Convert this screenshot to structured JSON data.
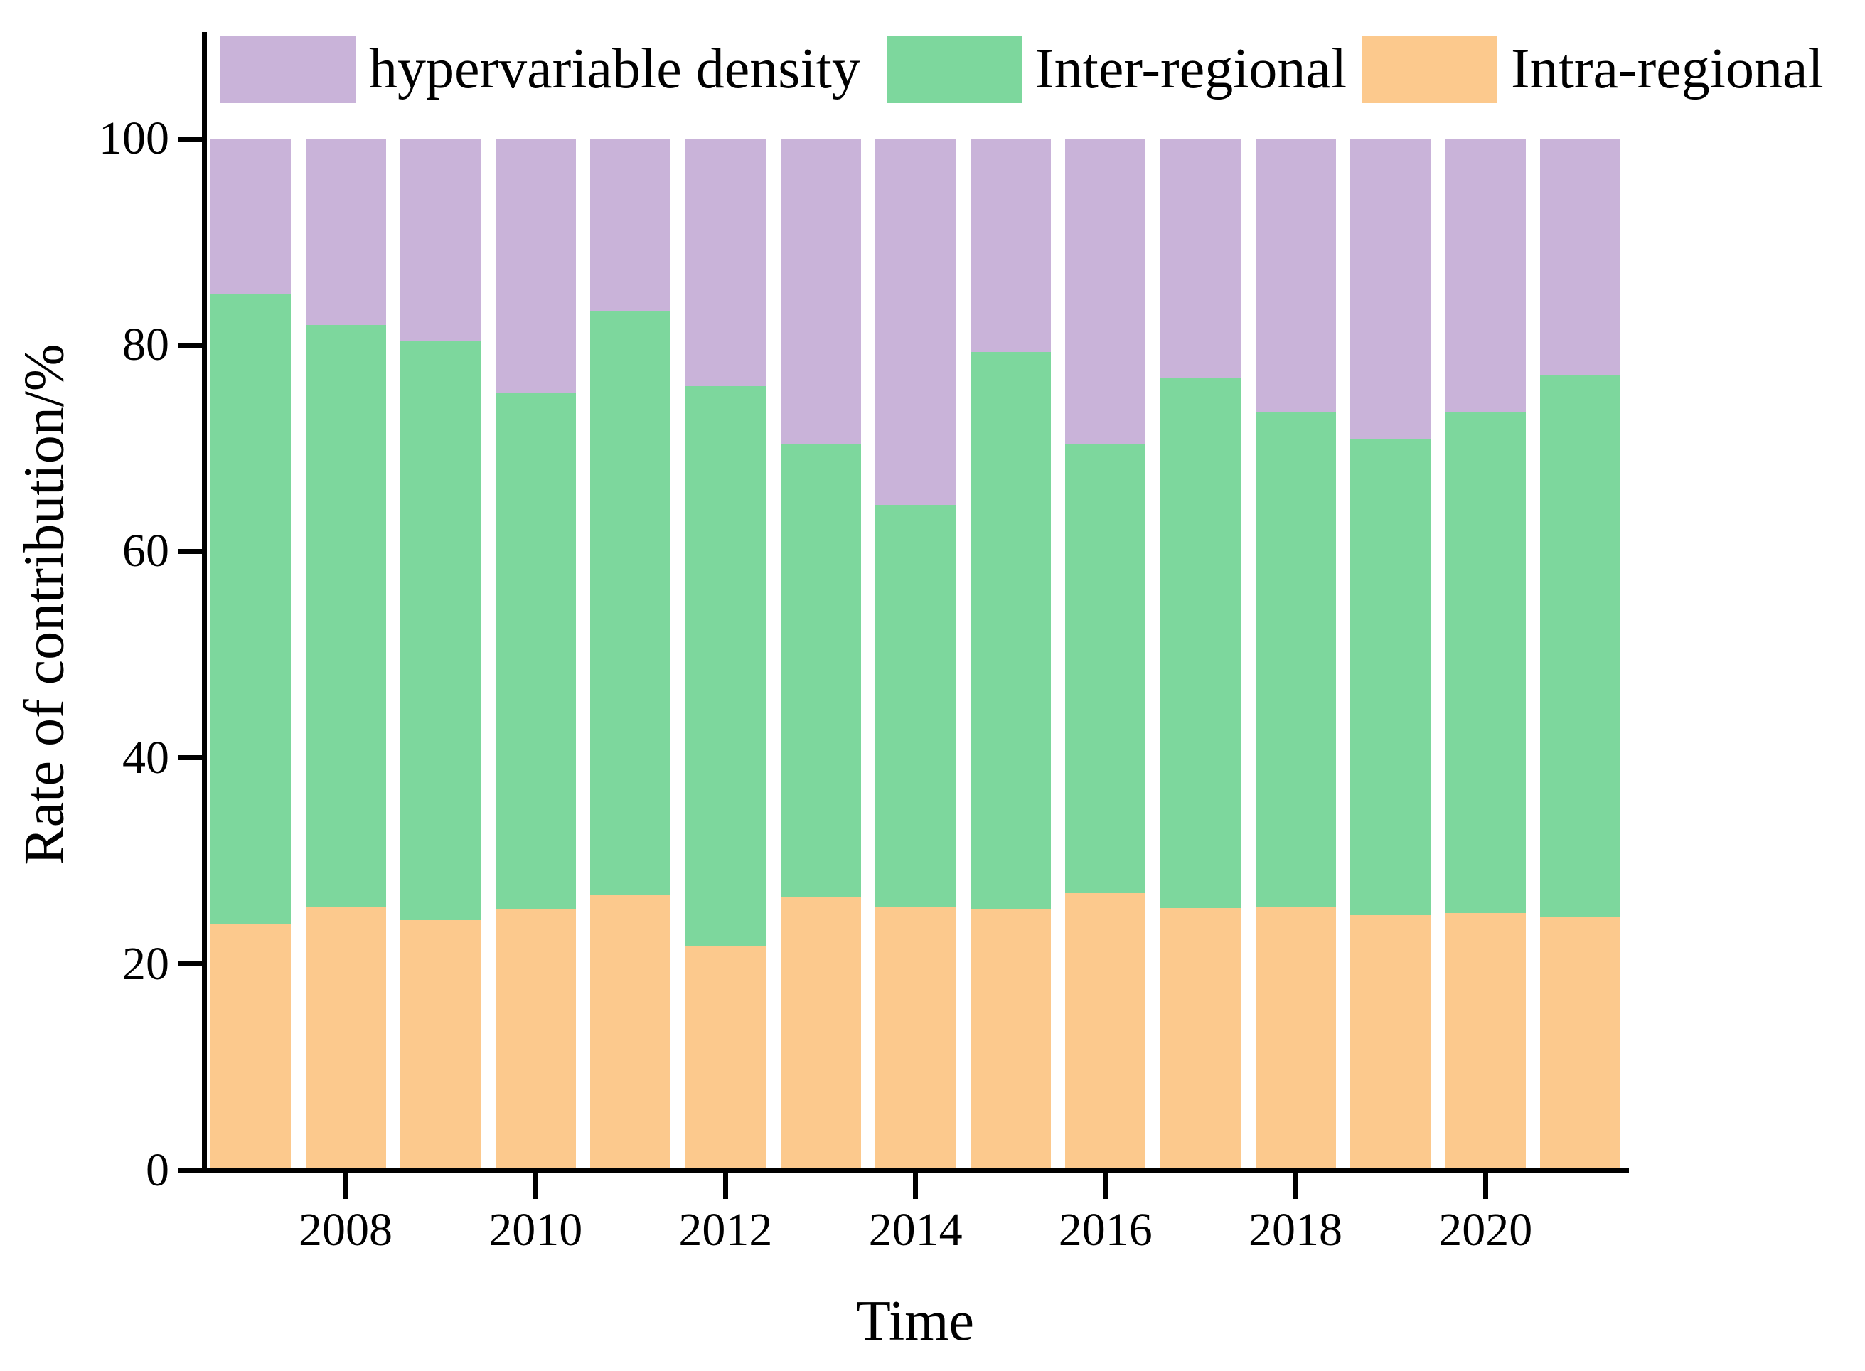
{
  "chart_data": {
    "type": "bar",
    "stacked": true,
    "title": "",
    "xlabel": "Time",
    "ylabel": "Rate of contribution/%",
    "ylim": [
      0,
      100
    ],
    "yticks": [
      0,
      20,
      40,
      60,
      80,
      100
    ],
    "xticks": [
      2008,
      2010,
      2012,
      2014,
      2016,
      2018,
      2020
    ],
    "grid": false,
    "legend_position": "top",
    "categories": [
      2007,
      2008,
      2009,
      2010,
      2011,
      2012,
      2013,
      2014,
      2015,
      2016,
      2017,
      2018,
      2019,
      2020,
      2021
    ],
    "series": [
      {
        "name": "Intra-regional",
        "color": "#fcc98d",
        "values": [
          23.7,
          25.4,
          24.1,
          25.2,
          26.6,
          21.6,
          26.4,
          25.4,
          25.2,
          26.7,
          25.3,
          25.4,
          24.6,
          24.8,
          24.4
        ]
      },
      {
        "name": "Inter-regional",
        "color": "#7dd79d",
        "values": [
          61.2,
          56.5,
          56.3,
          50.1,
          56.6,
          54.4,
          43.9,
          39.0,
          54.1,
          43.6,
          51.5,
          48.1,
          46.2,
          48.7,
          52.6
        ]
      },
      {
        "name": "hypervariable density",
        "color": "#c9b3d9",
        "values": [
          15.1,
          18.1,
          19.6,
          24.7,
          16.8,
          24.0,
          29.7,
          35.6,
          20.7,
          29.7,
          23.2,
          26.5,
          29.2,
          26.5,
          23.0
        ]
      }
    ],
    "legend": [
      {
        "label": "hypervariable density",
        "color": "#c9b3d9"
      },
      {
        "label": "Inter-regional",
        "color": "#7dd79d"
      },
      {
        "label": "Intra-regional",
        "color": "#fcc98d"
      }
    ]
  },
  "colors": {
    "axis": "#000000",
    "background": "#ffffff",
    "hypervariable_density": "#c9b3d9",
    "inter_regional": "#7dd79d",
    "intra_regional": "#fcc98d"
  }
}
